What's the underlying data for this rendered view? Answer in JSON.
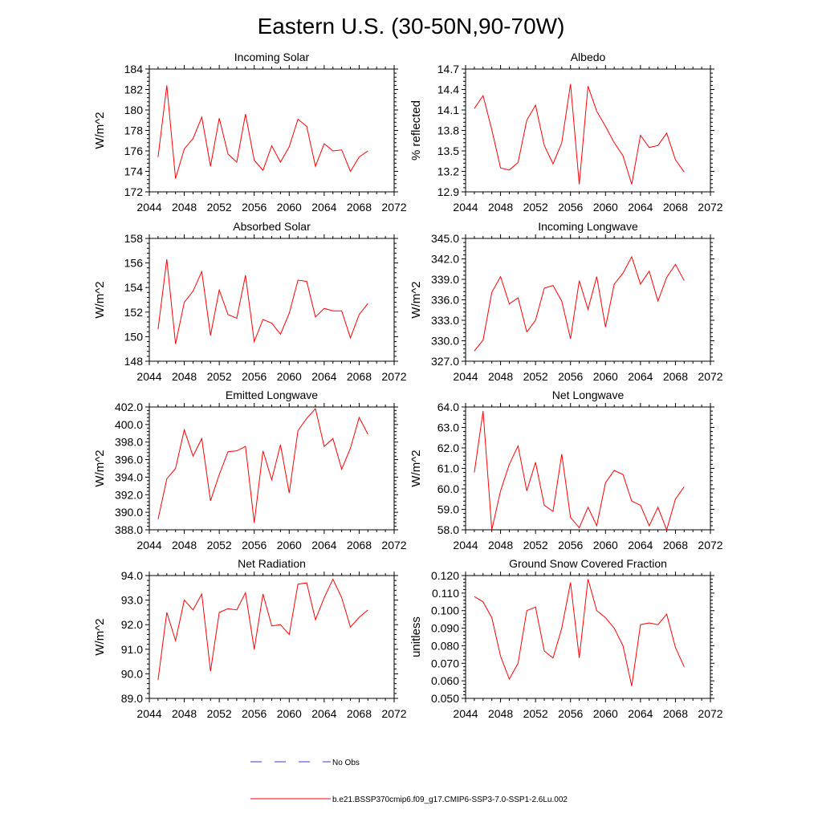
{
  "main_title": "Eastern U.S. (30-50N,90-70W)",
  "legend": {
    "obs_label": "No Obs",
    "model_label": "b.e21.BSSP370cmip6.f09_g17.CMIP6-SSP3-7.0-SSP1-2.6Lu.002",
    "obs_color": "#3b3bd6",
    "model_color": "#ff0000"
  },
  "chart_data": [
    {
      "type": "line",
      "title": "Incoming Solar",
      "ylabel": "W/m^2",
      "xlim": [
        2044,
        2072
      ],
      "ylim": [
        172,
        184
      ],
      "xticks": [
        "2044",
        "2048",
        "2052",
        "2056",
        "2060",
        "2064",
        "2068",
        "2072"
      ],
      "yticks": [
        "172",
        "174",
        "176",
        "178",
        "180",
        "182",
        "184"
      ],
      "x": [
        2045,
        2046,
        2047,
        2048,
        2049,
        2050,
        2051,
        2052,
        2053,
        2054,
        2055,
        2056,
        2057,
        2058,
        2059,
        2060,
        2061,
        2062,
        2063,
        2064,
        2065,
        2066,
        2067,
        2068,
        2069
      ],
      "series": [
        {
          "values": [
            175.4,
            182.4,
            173.3,
            176.2,
            177.2,
            179.3,
            174.5,
            179.2,
            175.7,
            174.9,
            179.6,
            175.1,
            174.1,
            176.5,
            174.9,
            176.4,
            179.1,
            178.4,
            174.5,
            176.7,
            176.0,
            176.1,
            174.0,
            175.4,
            176.0
          ]
        }
      ]
    },
    {
      "type": "line",
      "title": "Albedo",
      "ylabel": "% reflected",
      "xlim": [
        2044,
        2072
      ],
      "ylim": [
        12.9,
        14.7
      ],
      "xticks": [
        "2044",
        "2048",
        "2052",
        "2056",
        "2060",
        "2064",
        "2068",
        "2072"
      ],
      "yticks": [
        "12.9",
        "13.2",
        "13.5",
        "13.8",
        "14.1",
        "14.4",
        "14.7"
      ],
      "x": [
        2045,
        2046,
        2047,
        2048,
        2049,
        2050,
        2051,
        2052,
        2053,
        2054,
        2055,
        2056,
        2057,
        2058,
        2059,
        2060,
        2061,
        2062,
        2063,
        2064,
        2065,
        2066,
        2067,
        2068,
        2069
      ],
      "series": [
        {
          "values": [
            14.12,
            14.31,
            13.81,
            13.25,
            13.22,
            13.33,
            13.95,
            14.17,
            13.58,
            13.31,
            13.62,
            14.48,
            13.01,
            14.45,
            14.08,
            13.86,
            13.62,
            13.43,
            13.01,
            13.73,
            13.55,
            13.58,
            13.76,
            13.37,
            13.19
          ]
        }
      ]
    },
    {
      "type": "line",
      "title": "Absorbed Solar",
      "ylabel": "W/m^2",
      "xlim": [
        2044,
        2072
      ],
      "ylim": [
        148,
        158
      ],
      "xticks": [
        "2044",
        "2048",
        "2052",
        "2056",
        "2060",
        "2064",
        "2068",
        "2072"
      ],
      "yticks": [
        "148",
        "150",
        "152",
        "154",
        "156",
        "158"
      ],
      "x": [
        2045,
        2046,
        2047,
        2048,
        2049,
        2050,
        2051,
        2052,
        2053,
        2054,
        2055,
        2056,
        2057,
        2058,
        2059,
        2060,
        2061,
        2062,
        2063,
        2064,
        2065,
        2066,
        2067,
        2068,
        2069
      ],
      "series": [
        {
          "values": [
            150.6,
            156.3,
            149.4,
            152.8,
            153.7,
            155.3,
            150.1,
            153.8,
            151.8,
            151.5,
            155.0,
            149.6,
            151.4,
            151.1,
            150.2,
            151.9,
            154.6,
            154.5,
            151.6,
            152.3,
            152.1,
            152.1,
            149.9,
            151.8,
            152.7
          ]
        }
      ]
    },
    {
      "type": "line",
      "title": "Incoming Longwave",
      "ylabel": "W/m^2",
      "xlim": [
        2044,
        2072
      ],
      "ylim": [
        327.0,
        345.0
      ],
      "xticks": [
        "2044",
        "2048",
        "2052",
        "2056",
        "2060",
        "2064",
        "2068",
        "2072"
      ],
      "yticks": [
        "327.0",
        "330.0",
        "333.0",
        "336.0",
        "339.0",
        "342.0",
        "345.0"
      ],
      "x": [
        2045,
        2046,
        2047,
        2048,
        2049,
        2050,
        2051,
        2052,
        2053,
        2054,
        2055,
        2056,
        2057,
        2058,
        2059,
        2060,
        2061,
        2062,
        2063,
        2064,
        2065,
        2066,
        2067,
        2068,
        2069
      ],
      "series": [
        {
          "values": [
            328.5,
            330.1,
            337.1,
            339.4,
            335.4,
            336.3,
            331.3,
            333.0,
            337.7,
            338.1,
            335.8,
            330.3,
            338.8,
            334.6,
            339.4,
            332.0,
            338.3,
            339.9,
            342.3,
            338.3,
            340.2,
            335.8,
            339.3,
            341.2,
            338.8
          ]
        }
      ]
    },
    {
      "type": "line",
      "title": "Emitted Longwave",
      "ylabel": "W/m^2",
      "xlim": [
        2044,
        2072
      ],
      "ylim": [
        388.0,
        402.0
      ],
      "xticks": [
        "2044",
        "2048",
        "2052",
        "2056",
        "2060",
        "2064",
        "2068",
        "2072"
      ],
      "yticks": [
        "388.0",
        "390.0",
        "392.0",
        "394.0",
        "396.0",
        "398.0",
        "400.0",
        "402.0"
      ],
      "x": [
        2045,
        2046,
        2047,
        2048,
        2049,
        2050,
        2051,
        2052,
        2053,
        2054,
        2055,
        2056,
        2057,
        2058,
        2059,
        2060,
        2061,
        2062,
        2063,
        2064,
        2065,
        2066,
        2067,
        2068,
        2069
      ],
      "series": [
        {
          "values": [
            389.2,
            393.8,
            395.0,
            399.4,
            396.4,
            398.4,
            391.3,
            394.3,
            396.9,
            397.0,
            397.5,
            388.8,
            397.0,
            393.7,
            397.7,
            392.2,
            399.3,
            400.7,
            401.8,
            397.5,
            398.4,
            394.9,
            397.3,
            400.8,
            398.9
          ]
        }
      ]
    },
    {
      "type": "line",
      "title": "Net Longwave",
      "ylabel": "W/m^2",
      "xlim": [
        2044,
        2072
      ],
      "ylim": [
        58.0,
        64.0
      ],
      "xticks": [
        "2044",
        "2048",
        "2052",
        "2056",
        "2060",
        "2064",
        "2068",
        "2072"
      ],
      "yticks": [
        "58.0",
        "59.0",
        "60.0",
        "61.0",
        "62.0",
        "63.0",
        "64.0"
      ],
      "x": [
        2045,
        2046,
        2047,
        2048,
        2049,
        2050,
        2051,
        2052,
        2053,
        2054,
        2055,
        2056,
        2057,
        2058,
        2059,
        2060,
        2061,
        2062,
        2063,
        2064,
        2065,
        2066,
        2067,
        2068,
        2069
      ],
      "series": [
        {
          "values": [
            60.8,
            63.8,
            58.0,
            59.9,
            61.2,
            62.1,
            59.9,
            61.3,
            59.2,
            58.9,
            61.7,
            58.6,
            58.1,
            59.1,
            58.2,
            60.3,
            60.9,
            60.7,
            59.4,
            59.2,
            58.2,
            59.1,
            58.0,
            59.5,
            60.1
          ]
        }
      ]
    },
    {
      "type": "line",
      "title": "Net Radiation",
      "ylabel": "W/m^2",
      "xlim": [
        2044,
        2072
      ],
      "ylim": [
        89.0,
        94.0
      ],
      "xticks": [
        "2044",
        "2048",
        "2052",
        "2056",
        "2060",
        "2064",
        "2068",
        "2072"
      ],
      "yticks": [
        "89.0",
        "90.0",
        "91.0",
        "92.0",
        "93.0",
        "94.0"
      ],
      "x": [
        2045,
        2046,
        2047,
        2048,
        2049,
        2050,
        2051,
        2052,
        2053,
        2054,
        2055,
        2056,
        2057,
        2058,
        2059,
        2060,
        2061,
        2062,
        2063,
        2064,
        2065,
        2066,
        2067,
        2068,
        2069
      ],
      "series": [
        {
          "values": [
            89.75,
            92.5,
            91.35,
            93.0,
            92.6,
            93.25,
            90.1,
            92.5,
            92.65,
            92.6,
            93.3,
            91.0,
            93.25,
            91.95,
            92.0,
            91.6,
            93.65,
            93.7,
            92.2,
            93.1,
            93.85,
            93.1,
            91.9,
            92.3,
            92.6
          ]
        }
      ]
    },
    {
      "type": "line",
      "title": "Ground Snow Covered Fraction",
      "ylabel": "unitless",
      "xlim": [
        2044,
        2072
      ],
      "ylim": [
        0.05,
        0.12
      ],
      "xticks": [
        "2044",
        "2048",
        "2052",
        "2056",
        "2060",
        "2064",
        "2068",
        "2072"
      ],
      "yticks": [
        "0.050",
        "0.060",
        "0.070",
        "0.080",
        "0.090",
        "0.100",
        "0.110",
        "0.120"
      ],
      "x": [
        2045,
        2046,
        2047,
        2048,
        2049,
        2050,
        2051,
        2052,
        2053,
        2054,
        2055,
        2056,
        2057,
        2058,
        2059,
        2060,
        2061,
        2062,
        2063,
        2064,
        2065,
        2066,
        2067,
        2068,
        2069
      ],
      "series": [
        {
          "values": [
            0.108,
            0.105,
            0.096,
            0.074,
            0.061,
            0.07,
            0.1,
            0.102,
            0.077,
            0.073,
            0.09,
            0.116,
            0.073,
            0.118,
            0.1,
            0.096,
            0.09,
            0.08,
            0.057,
            0.092,
            0.093,
            0.092,
            0.098,
            0.079,
            0.068
          ]
        }
      ]
    }
  ]
}
